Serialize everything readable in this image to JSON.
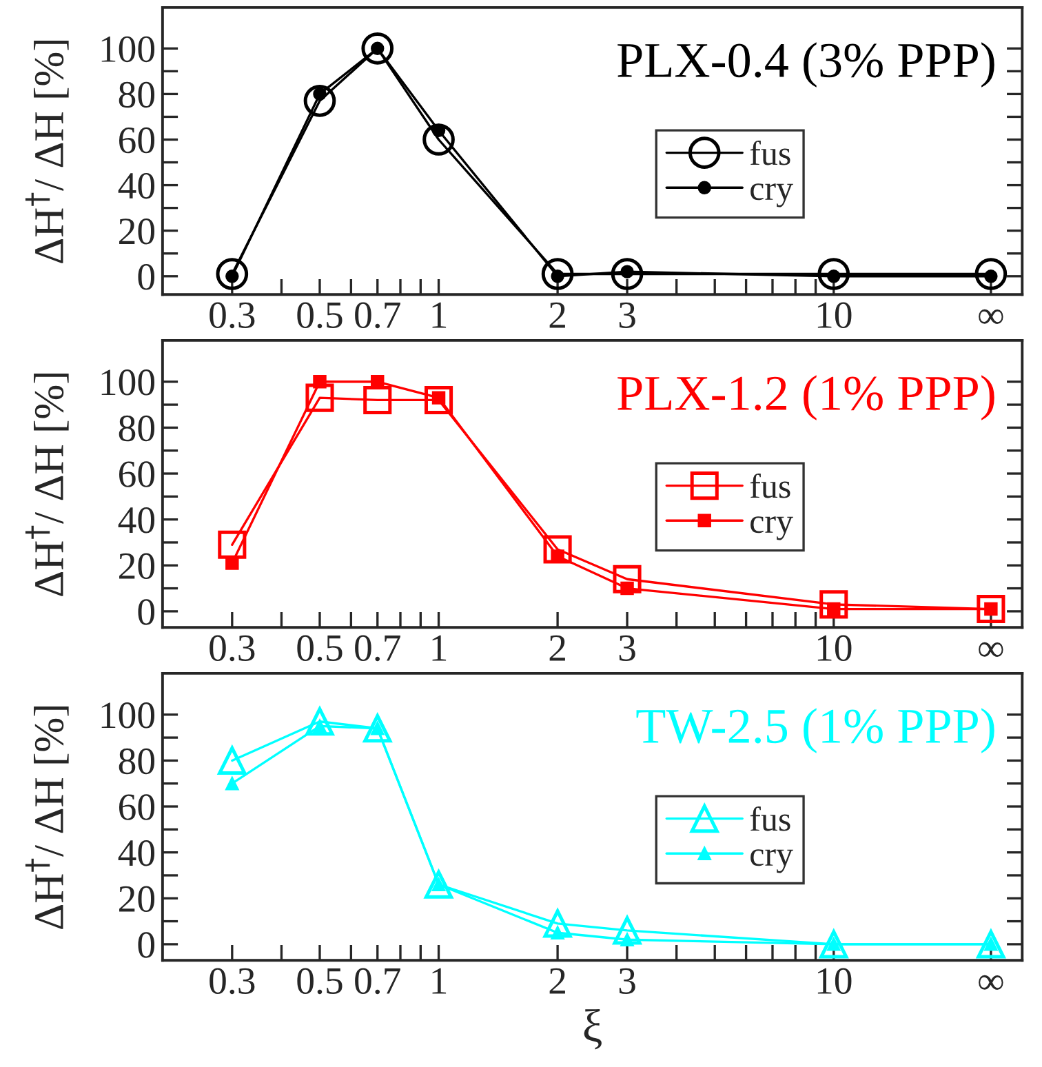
{
  "chart_data": [
    {
      "type": "line",
      "ylabel": "ΔH$^{†}$/ ΔH [%]",
      "annotations": [
        "PLX-0.4 (3% PPP)"
      ],
      "x": [
        0.3,
        0.5,
        0.7,
        1,
        2,
        3,
        10,
        25
      ],
      "log": "x",
      "xlim": [
        0.2,
        30
      ],
      "ylim": [
        -8,
        118
      ],
      "xticks": [
        {
          "value": 0.3,
          "label": "0.3"
        },
        {
          "value": 0.4,
          "label": null
        },
        {
          "value": 0.5,
          "label": "0.5"
        },
        {
          "value": 0.6,
          "label": null
        },
        {
          "value": 0.7,
          "label": "0.7"
        },
        {
          "value": 0.8,
          "label": null
        },
        {
          "value": 0.9,
          "label": null
        },
        1,
        2,
        3,
        {
          "value": 4,
          "label": null
        },
        {
          "value": 5,
          "label": null
        },
        {
          "value": 6,
          "label": null
        },
        {
          "value": 7,
          "label": null
        },
        {
          "value": 8,
          "label": null
        },
        {
          "value": 9,
          "label": null
        },
        10,
        {
          "value": 25,
          "label": "∞"
        }
      ],
      "yticks": [
        0,
        {
          "value": 10,
          "label": null
        },
        20,
        {
          "value": 30,
          "label": null
        },
        40,
        {
          "value": 50,
          "label": null
        },
        60,
        {
          "value": 70,
          "label": null
        },
        80,
        {
          "value": 90,
          "label": null
        },
        100
      ],
      "legend": "center right",
      "grid": false,
      "series": [
        {
          "name": "fus",
          "color": "#000000",
          "marker": "circle",
          "values": [
            1,
            77,
            100,
            60,
            1,
            1,
            1,
            1
          ]
        },
        {
          "name": "cry",
          "color": "#000000",
          "marker": "circle",
          "values": [
            0,
            80,
            100,
            64,
            0,
            2,
            0,
            0
          ]
        }
      ]
    },
    {
      "type": "line",
      "ylabel": "ΔH$^{†}$/ ΔH [%]",
      "annotations": [
        "PLX-1.2 (1% PPP)"
      ],
      "x": [
        0.3,
        0.5,
        0.7,
        1,
        2,
        3,
        10,
        25
      ],
      "log": "x",
      "xlim": [
        0.2,
        30
      ],
      "ylim": [
        -7,
        118
      ],
      "xticks": [
        {
          "value": 0.3,
          "label": "0.3"
        },
        {
          "value": 0.4,
          "label": null
        },
        {
          "value": 0.5,
          "label": "0.5"
        },
        {
          "value": 0.6,
          "label": null
        },
        {
          "value": 0.7,
          "label": "0.7"
        },
        {
          "value": 0.8,
          "label": null
        },
        {
          "value": 0.9,
          "label": null
        },
        1,
        2,
        3,
        {
          "value": 4,
          "label": null
        },
        {
          "value": 5,
          "label": null
        },
        {
          "value": 6,
          "label": null
        },
        {
          "value": 7,
          "label": null
        },
        {
          "value": 8,
          "label": null
        },
        {
          "value": 9,
          "label": null
        },
        10,
        {
          "value": 25,
          "label": "∞"
        }
      ],
      "yticks": [
        0,
        {
          "value": 10,
          "label": null
        },
        20,
        {
          "value": 30,
          "label": null
        },
        40,
        {
          "value": 50,
          "label": null
        },
        60,
        {
          "value": 70,
          "label": null
        },
        80,
        {
          "value": 90,
          "label": null
        },
        100
      ],
      "legend": "center right",
      "grid": false,
      "series": [
        {
          "name": "fus",
          "color": "#ff0000",
          "marker": "square",
          "values": [
            29,
            93,
            92,
            92,
            27,
            14,
            3,
            1
          ]
        },
        {
          "name": "cry",
          "color": "#ff0000",
          "marker": "square",
          "values": [
            21,
            100,
            100,
            93,
            24,
            10,
            1,
            1
          ]
        }
      ]
    },
    {
      "type": "line",
      "ylabel": "ΔH$^{†}$/ ΔH [%]",
      "xlabel": "ξ",
      "annotations": [
        "TW-2.5 (1% PPP)"
      ],
      "x": [
        0.3,
        0.5,
        0.7,
        1,
        2,
        3,
        10,
        25
      ],
      "log": "x",
      "xlim": [
        0.2,
        30
      ],
      "ylim": [
        -7,
        118
      ],
      "xticks": [
        {
          "value": 0.3,
          "label": "0.3"
        },
        {
          "value": 0.4,
          "label": null
        },
        {
          "value": 0.5,
          "label": "0.5"
        },
        {
          "value": 0.6,
          "label": null
        },
        {
          "value": 0.7,
          "label": "0.7"
        },
        {
          "value": 0.8,
          "label": null
        },
        {
          "value": 0.9,
          "label": null
        },
        1,
        2,
        3,
        {
          "value": 4,
          "label": null
        },
        {
          "value": 5,
          "label": null
        },
        {
          "value": 6,
          "label": null
        },
        {
          "value": 7,
          "label": null
        },
        {
          "value": 8,
          "label": null
        },
        {
          "value": 9,
          "label": null
        },
        10,
        {
          "value": 25,
          "label": "∞"
        }
      ],
      "yticks": [
        0,
        {
          "value": 10,
          "label": null
        },
        20,
        {
          "value": 30,
          "label": null
        },
        40,
        {
          "value": 50,
          "label": null
        },
        60,
        {
          "value": 70,
          "label": null
        },
        80,
        {
          "value": 90,
          "label": null
        },
        100
      ],
      "legend": "center right",
      "grid": false,
      "series": [
        {
          "name": "fus",
          "color": "#00ffff",
          "marker": "triangle",
          "values": [
            80,
            97,
            94,
            26,
            9,
            6,
            0,
            0
          ]
        },
        {
          "name": "cry",
          "color": "#00ffff",
          "marker": "triangle",
          "values": [
            70,
            95,
            94,
            26,
            5,
            2,
            0,
            0
          ]
        }
      ]
    }
  ]
}
